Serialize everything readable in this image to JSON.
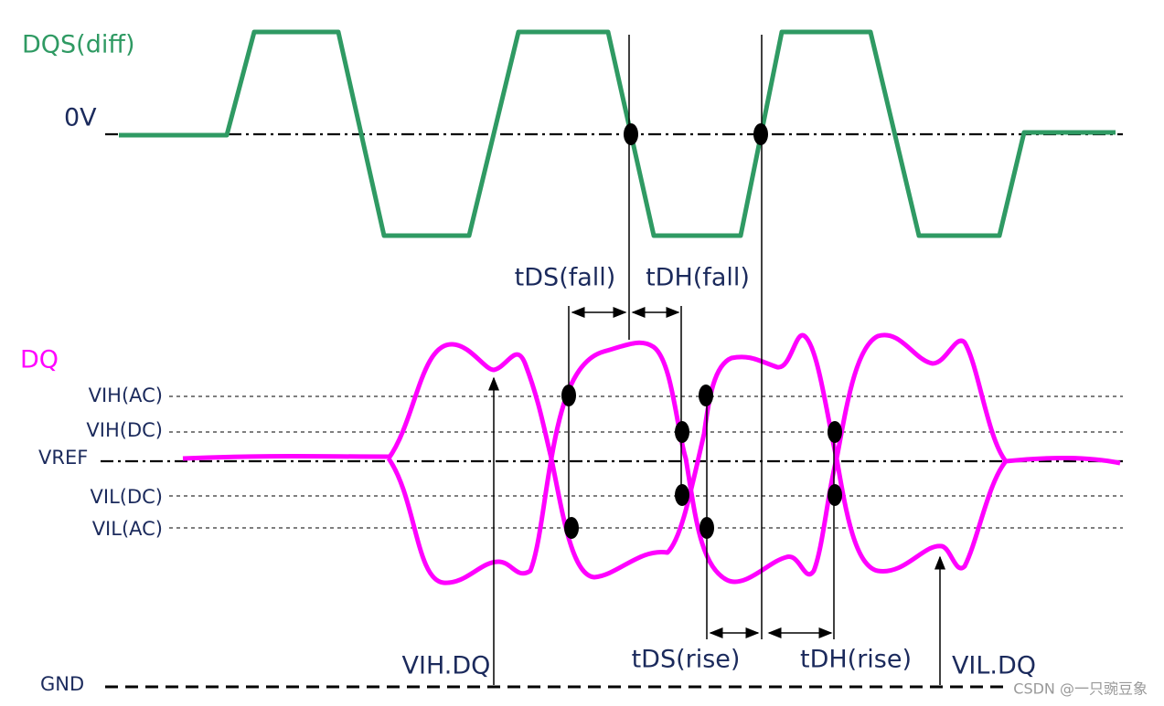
{
  "signals": {
    "dqs": "DQS(diff)",
    "zero": "0V",
    "dq": "DQ"
  },
  "levels": {
    "vih_ac": "VIH(AC)",
    "vih_dc": "VIH(DC)",
    "vref": "VREF",
    "vil_dc": "VIL(DC)",
    "vil_ac": "VIL(AC)",
    "gnd": "GND"
  },
  "timings": {
    "tds_fall": "tDS(fall)",
    "tdh_fall": "tDH(fall)",
    "tds_rise": "tDS(rise)",
    "tdh_rise": "tDH(rise)"
  },
  "annotations": {
    "vih_dq": "VIH.DQ",
    "vil_dq": "VIL.DQ"
  },
  "watermark": "CSDN @一只豌豆象"
}
